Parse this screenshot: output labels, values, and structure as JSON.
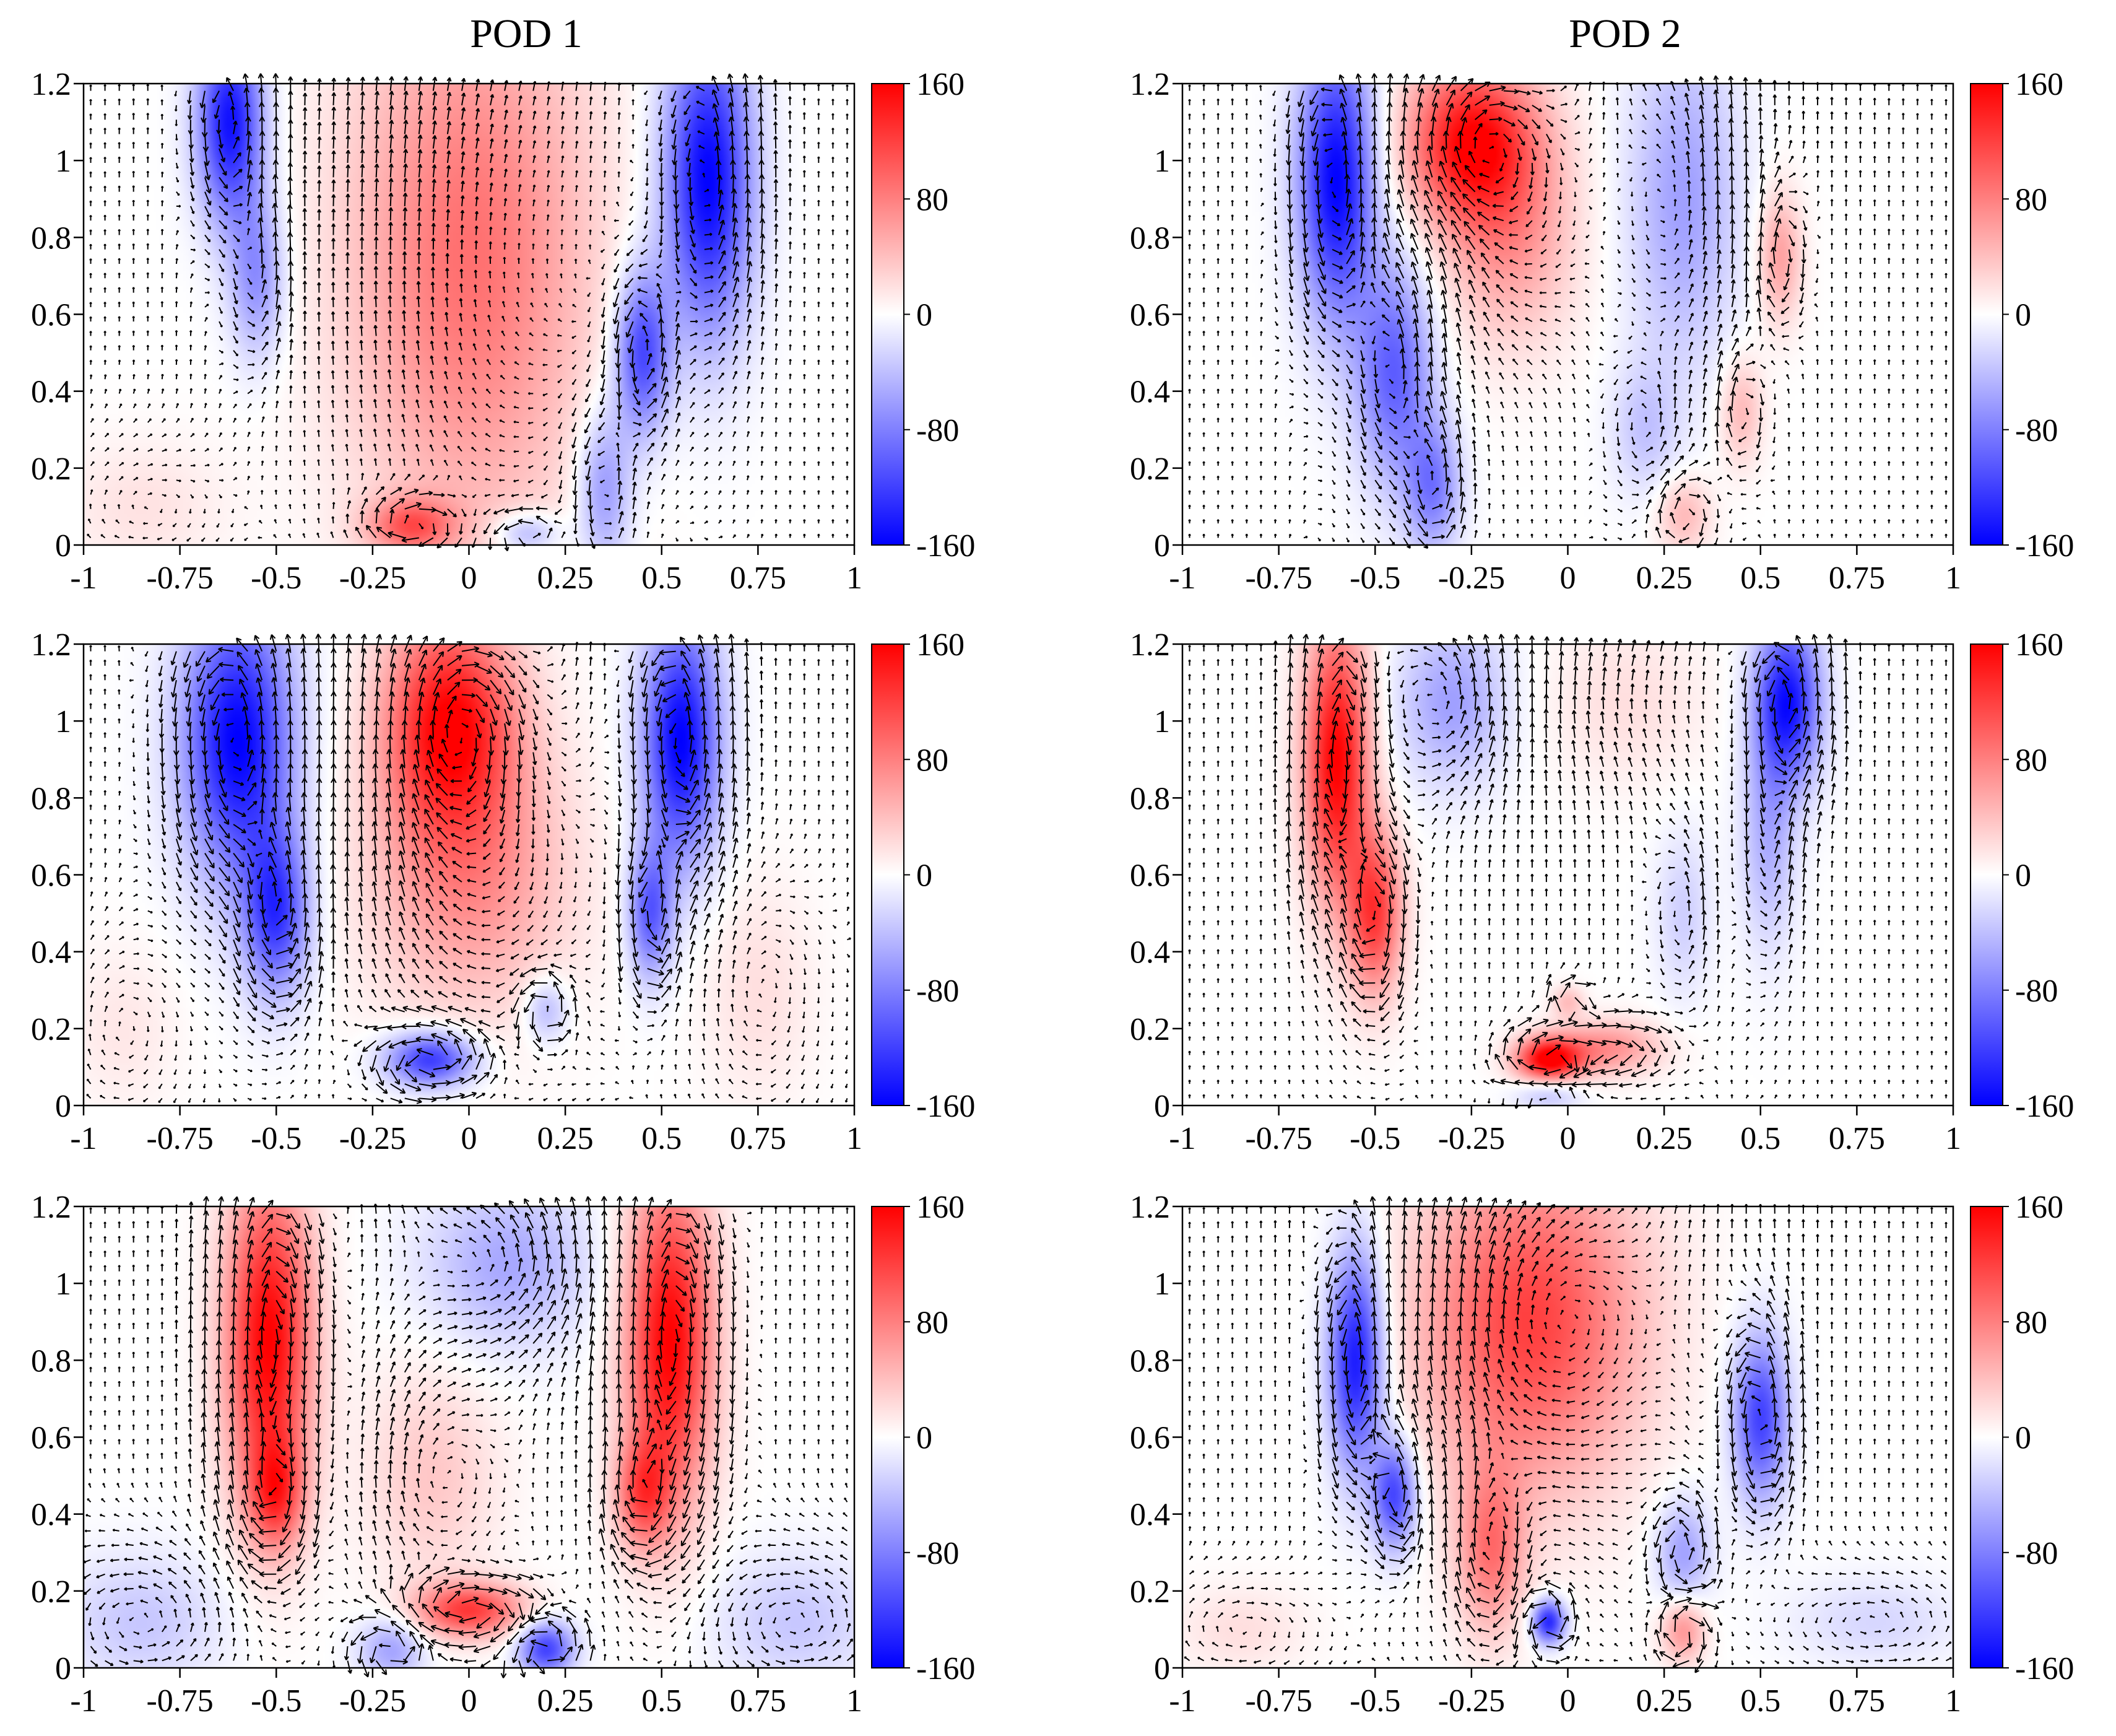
{
  "figure": {
    "columns": [
      "POD 1",
      "POD 2"
    ]
  },
  "colorbar": {
    "ticks": [
      160,
      80,
      0,
      -80,
      -160
    ],
    "tick_labels": [
      "160",
      "80",
      "0",
      "-80",
      "-160"
    ],
    "range": [
      -160,
      160
    ],
    "colors": {
      "positive": "#ff0000",
      "zero": "#ffffff",
      "negative": "#0000ff"
    }
  },
  "chart_data": [
    {
      "type": "heatmap",
      "title": "POD 1",
      "row": 1,
      "col": 1,
      "xlim": [
        -1,
        1
      ],
      "ylim": [
        0,
        1.2
      ],
      "x_ticks": [
        "-1",
        "-0.75",
        "-0.5",
        "-0.25",
        "0",
        "0.25",
        "0.5",
        "0.75",
        "1"
      ],
      "y_ticks": [
        "0",
        "0.2",
        "0.4",
        "0.6",
        "0.8",
        "1",
        "1.2"
      ],
      "quiver": {
        "arrows": "velocity vector field overlay",
        "swirl": 0.3
      },
      "blobs": [
        {
          "x": 0.0,
          "y": 0.75,
          "sx": 0.22,
          "sy": 0.5,
          "v": 90
        },
        {
          "x": -0.15,
          "y": 0.05,
          "sx": 0.08,
          "sy": 0.05,
          "v": 90
        },
        {
          "x": -0.62,
          "y": 1.1,
          "sx": 0.06,
          "sy": 0.18,
          "v": -150
        },
        {
          "x": -0.55,
          "y": 0.7,
          "sx": 0.05,
          "sy": 0.15,
          "v": -70
        },
        {
          "x": 0.62,
          "y": 0.95,
          "sx": 0.08,
          "sy": 0.28,
          "v": -160
        },
        {
          "x": 0.45,
          "y": 0.5,
          "sx": 0.05,
          "sy": 0.15,
          "v": -120
        },
        {
          "x": 0.35,
          "y": 0.15,
          "sx": 0.05,
          "sy": 0.15,
          "v": -70
        },
        {
          "x": 0.15,
          "y": 0.03,
          "sx": 0.06,
          "sy": 0.04,
          "v": -60
        },
        {
          "x": -0.85,
          "y": 0.1,
          "sx": 0.15,
          "sy": 0.12,
          "v": 18
        }
      ]
    },
    {
      "type": "heatmap",
      "title": "POD 2",
      "row": 1,
      "col": 2,
      "xlim": [
        -1,
        1
      ],
      "ylim": [
        0,
        1.2
      ],
      "x_ticks": [
        "-1",
        "-0.75",
        "-0.5",
        "-0.25",
        "0",
        "0.25",
        "0.5",
        "0.75",
        "1"
      ],
      "y_ticks": [
        "0",
        "0.2",
        "0.4",
        "0.6",
        "0.8",
        "1",
        "1.2"
      ],
      "quiver": {
        "arrows": "velocity vector field overlay",
        "swirl": 0.4
      },
      "blobs": [
        {
          "x": -0.6,
          "y": 0.95,
          "sx": 0.07,
          "sy": 0.25,
          "v": -160
        },
        {
          "x": -0.45,
          "y": 0.45,
          "sx": 0.07,
          "sy": 0.2,
          "v": -100
        },
        {
          "x": -0.35,
          "y": 0.15,
          "sx": 0.05,
          "sy": 0.12,
          "v": -80
        },
        {
          "x": -0.25,
          "y": 1.05,
          "sx": 0.12,
          "sy": 0.15,
          "v": 150
        },
        {
          "x": -0.15,
          "y": 0.8,
          "sx": 0.12,
          "sy": 0.2,
          "v": 60
        },
        {
          "x": 0.3,
          "y": 0.9,
          "sx": 0.1,
          "sy": 0.3,
          "v": -60
        },
        {
          "x": 0.55,
          "y": 0.75,
          "sx": 0.04,
          "sy": 0.12,
          "v": 60
        },
        {
          "x": 0.45,
          "y": 0.35,
          "sx": 0.04,
          "sy": 0.1,
          "v": 45
        },
        {
          "x": 0.3,
          "y": 0.08,
          "sx": 0.05,
          "sy": 0.07,
          "v": 45
        },
        {
          "x": 0.2,
          "y": 0.3,
          "sx": 0.06,
          "sy": 0.12,
          "v": -35
        }
      ]
    },
    {
      "type": "heatmap",
      "title": "POD 1",
      "row": 2,
      "col": 1,
      "xlim": [
        -1,
        1
      ],
      "ylim": [
        0,
        1.2
      ],
      "x_ticks": [
        "-1",
        "-0.75",
        "-0.5",
        "-0.25",
        "0",
        "0.25",
        "0.5",
        "0.75",
        "1"
      ],
      "y_ticks": [
        "0",
        "0.2",
        "0.4",
        "0.6",
        "0.8",
        "1",
        "1.2"
      ],
      "quiver": {
        "arrows": "velocity vector field overlay",
        "swirl": 0.6
      },
      "blobs": [
        {
          "x": -0.6,
          "y": 0.95,
          "sx": 0.1,
          "sy": 0.25,
          "v": -160
        },
        {
          "x": -0.5,
          "y": 0.5,
          "sx": 0.06,
          "sy": 0.15,
          "v": -120
        },
        {
          "x": -0.05,
          "y": 1.0,
          "sx": 0.12,
          "sy": 0.2,
          "v": 150
        },
        {
          "x": 0.0,
          "y": 0.6,
          "sx": 0.18,
          "sy": 0.25,
          "v": 70
        },
        {
          "x": 0.55,
          "y": 0.95,
          "sx": 0.07,
          "sy": 0.22,
          "v": -160
        },
        {
          "x": 0.47,
          "y": 0.5,
          "sx": 0.04,
          "sy": 0.12,
          "v": -100
        },
        {
          "x": -0.1,
          "y": 0.12,
          "sx": 0.08,
          "sy": 0.05,
          "v": -130
        },
        {
          "x": 0.2,
          "y": 0.25,
          "sx": 0.04,
          "sy": 0.06,
          "v": -50
        },
        {
          "x": 0.75,
          "y": 0.3,
          "sx": 0.1,
          "sy": 0.2,
          "v": 20
        },
        {
          "x": -0.9,
          "y": 0.2,
          "sx": 0.1,
          "sy": 0.15,
          "v": 15
        }
      ]
    },
    {
      "type": "heatmap",
      "title": "POD 2",
      "row": 2,
      "col": 2,
      "xlim": [
        -1,
        1
      ],
      "ylim": [
        0,
        1.2
      ],
      "x_ticks": [
        "-1",
        "-0.75",
        "-0.5",
        "-0.25",
        "0",
        "0.25",
        "0.5",
        "0.75",
        "1"
      ],
      "y_ticks": [
        "0",
        "0.2",
        "0.4",
        "0.6",
        "0.8",
        "1",
        "1.2"
      ],
      "quiver": {
        "arrows": "velocity vector field overlay",
        "swirl": 0.5
      },
      "blobs": [
        {
          "x": -0.6,
          "y": 0.9,
          "sx": 0.06,
          "sy": 0.25,
          "v": 160
        },
        {
          "x": -0.5,
          "y": 0.5,
          "sx": 0.05,
          "sy": 0.15,
          "v": 120
        },
        {
          "x": 0.57,
          "y": 1.05,
          "sx": 0.06,
          "sy": 0.15,
          "v": -150
        },
        {
          "x": 0.52,
          "y": 0.7,
          "sx": 0.05,
          "sy": 0.2,
          "v": -50
        },
        {
          "x": -0.3,
          "y": 1.05,
          "sx": 0.1,
          "sy": 0.15,
          "v": -60
        },
        {
          "x": 0.15,
          "y": 1.05,
          "sx": 0.15,
          "sy": 0.15,
          "v": 20
        },
        {
          "x": -0.05,
          "y": 0.12,
          "sx": 0.06,
          "sy": 0.04,
          "v": 160
        },
        {
          "x": 0.1,
          "y": 0.15,
          "sx": 0.1,
          "sy": 0.05,
          "v": 70
        },
        {
          "x": 0.0,
          "y": 0.27,
          "sx": 0.03,
          "sy": 0.03,
          "v": 40
        },
        {
          "x": -0.05,
          "y": 0.03,
          "sx": 0.06,
          "sy": 0.03,
          "v": -40
        },
        {
          "x": 0.3,
          "y": 0.5,
          "sx": 0.05,
          "sy": 0.15,
          "v": -30
        }
      ]
    },
    {
      "type": "heatmap",
      "title": "POD 1",
      "row": 3,
      "col": 1,
      "xlim": [
        -1,
        1
      ],
      "ylim": [
        0,
        1.2
      ],
      "x_ticks": [
        "-1",
        "-0.75",
        "-0.5",
        "-0.25",
        "0",
        "0.25",
        "0.5",
        "0.75",
        "1"
      ],
      "y_ticks": [
        "0",
        "0.2",
        "0.4",
        "0.6",
        "0.8",
        "1",
        "1.2"
      ],
      "quiver": {
        "arrows": "velocity vector field overlay",
        "swirl": 0.7
      },
      "blobs": [
        {
          "x": -0.52,
          "y": 0.85,
          "sx": 0.08,
          "sy": 0.3,
          "v": 160
        },
        {
          "x": -0.5,
          "y": 0.45,
          "sx": 0.05,
          "sy": 0.1,
          "v": 90
        },
        {
          "x": 0.52,
          "y": 0.85,
          "sx": 0.08,
          "sy": 0.3,
          "v": 160
        },
        {
          "x": 0.45,
          "y": 0.45,
          "sx": 0.05,
          "sy": 0.1,
          "v": 90
        },
        {
          "x": 0.1,
          "y": 1.05,
          "sx": 0.15,
          "sy": 0.15,
          "v": -55
        },
        {
          "x": 0.0,
          "y": 0.15,
          "sx": 0.1,
          "sy": 0.05,
          "v": 120
        },
        {
          "x": -0.1,
          "y": 0.5,
          "sx": 0.12,
          "sy": 0.2,
          "v": 35
        },
        {
          "x": 0.2,
          "y": 0.05,
          "sx": 0.05,
          "sy": 0.05,
          "v": -120
        },
        {
          "x": -0.2,
          "y": 0.05,
          "sx": 0.06,
          "sy": 0.06,
          "v": -60
        },
        {
          "x": -0.85,
          "y": 0.12,
          "sx": 0.15,
          "sy": 0.12,
          "v": -35
        },
        {
          "x": 0.85,
          "y": 0.12,
          "sx": 0.15,
          "sy": 0.12,
          "v": -35
        }
      ]
    },
    {
      "type": "heatmap",
      "title": "POD 2",
      "row": 3,
      "col": 2,
      "xlim": [
        -1,
        1
      ],
      "ylim": [
        0,
        1.2
      ],
      "x_ticks": [
        "-1",
        "-0.75",
        "-0.5",
        "-0.25",
        "0",
        "0.25",
        "0.5",
        "0.75",
        "1"
      ],
      "y_ticks": [
        "0",
        "0.2",
        "0.4",
        "0.6",
        "0.8",
        "1",
        "1.2"
      ],
      "quiver": {
        "arrows": "velocity vector field overlay",
        "swirl": 0.5
      },
      "blobs": [
        {
          "x": -0.55,
          "y": 0.8,
          "sx": 0.05,
          "sy": 0.2,
          "v": -150
        },
        {
          "x": -0.45,
          "y": 0.45,
          "sx": 0.04,
          "sy": 0.1,
          "v": -120
        },
        {
          "x": -0.1,
          "y": 0.9,
          "sx": 0.2,
          "sy": 0.3,
          "v": 120
        },
        {
          "x": -0.2,
          "y": 0.3,
          "sx": 0.06,
          "sy": 0.15,
          "v": 80
        },
        {
          "x": 0.5,
          "y": 0.65,
          "sx": 0.05,
          "sy": 0.15,
          "v": -120
        },
        {
          "x": 0.3,
          "y": 0.3,
          "sx": 0.05,
          "sy": 0.1,
          "v": -60
        },
        {
          "x": -0.05,
          "y": 0.12,
          "sx": 0.03,
          "sy": 0.04,
          "v": -140
        },
        {
          "x": 0.3,
          "y": 0.1,
          "sx": 0.04,
          "sy": 0.06,
          "v": 70
        },
        {
          "x": 0.8,
          "y": 0.12,
          "sx": 0.15,
          "sy": 0.08,
          "v": -25
        },
        {
          "x": -0.85,
          "y": 0.1,
          "sx": 0.12,
          "sy": 0.08,
          "v": 20
        }
      ]
    }
  ]
}
